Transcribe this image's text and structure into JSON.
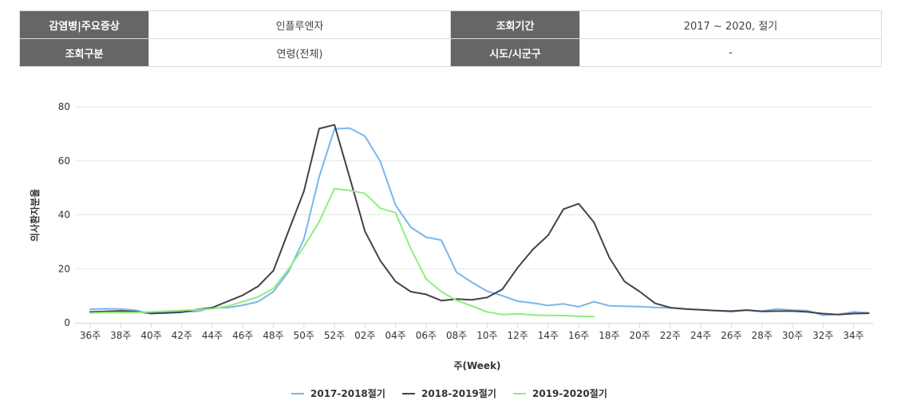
{
  "info": {
    "row1": {
      "label1": "감염병|주요증상",
      "value1": "인플루엔자",
      "label2": "조회기간",
      "value2": "2017 ~ 2020, 절기"
    },
    "row2": {
      "label1": "조회구분",
      "value1": "연령(전체)",
      "label2": "시도/시군구",
      "value2": "-"
    }
  },
  "colors": {
    "s2017": "#7cb5ec",
    "s2018": "#434348",
    "s2019": "#90ed7d",
    "grid": "#e6e6e6"
  },
  "chart_data": {
    "type": "line",
    "ylabel": "의사환자분율",
    "xlabel": "주(Week)",
    "ylim": [
      0,
      80
    ],
    "yticks": [
      0,
      20,
      40,
      60,
      80
    ],
    "grid": true,
    "legend_position": "bottom-center",
    "x": [
      "36주",
      "37주",
      "38주",
      "39주",
      "40주",
      "41주",
      "42주",
      "43주",
      "44주",
      "45주",
      "46주",
      "47주",
      "48주",
      "49주",
      "50주",
      "51주",
      "52주",
      "01주",
      "02주",
      "03주",
      "04주",
      "05주",
      "06주",
      "07주",
      "08주",
      "09주",
      "10주",
      "11주",
      "12주",
      "13주",
      "14주",
      "15주",
      "16주",
      "17주",
      "18주",
      "19주",
      "20주",
      "21주",
      "22주",
      "23주",
      "24주",
      "25주",
      "26주",
      "27주",
      "28주",
      "29주",
      "30주",
      "31주",
      "32주",
      "33주",
      "34주",
      "35주"
    ],
    "xticklabels": [
      "36주",
      "38주",
      "40주",
      "42주",
      "44주",
      "46주",
      "48주",
      "50주",
      "52주",
      "02주",
      "04주",
      "06주",
      "08주",
      "10주",
      "12주",
      "14주",
      "16주",
      "18주",
      "20주",
      "22주",
      "24주",
      "26주",
      "28주",
      "30주",
      "32주",
      "34주"
    ],
    "series": [
      {
        "name": "2017-2018절기",
        "color": "#7cb5ec",
        "values": [
          5.0,
          5.2,
          5.1,
          4.6,
          3.3,
          3.8,
          4.0,
          4.2,
          5.5,
          5.6,
          6.5,
          7.8,
          11.5,
          19.0,
          31.0,
          54.0,
          71.8,
          72.1,
          69.1,
          59.8,
          43.6,
          35.4,
          31.7,
          30.6,
          18.7,
          15.0,
          11.7,
          10.0,
          8.0,
          7.3,
          6.4,
          7.0,
          5.9,
          7.8,
          6.3,
          6.1,
          6.0,
          5.7,
          5.5,
          5.1,
          4.8,
          4.5,
          4.1,
          4.7,
          4.3,
          5.1,
          4.7,
          4.5,
          2.8,
          3.1,
          4.0,
          3.7
        ]
      },
      {
        "name": "2018-2019절기",
        "color": "#434348",
        "values": [
          4.0,
          4.2,
          4.4,
          4.1,
          3.5,
          3.6,
          3.9,
          4.9,
          5.6,
          7.9,
          10.2,
          13.5,
          19.3,
          34.1,
          48.7,
          71.9,
          73.3,
          53.8,
          33.9,
          23.0,
          15.3,
          11.5,
          10.5,
          8.2,
          8.8,
          8.5,
          9.4,
          12.4,
          20.4,
          27.2,
          32.4,
          42.1,
          44.1,
          37.2,
          24.2,
          15.3,
          11.5,
          7.2,
          5.6,
          5.1,
          4.8,
          4.5,
          4.3,
          4.7,
          4.2,
          4.3,
          4.3,
          4.0,
          3.4,
          3.0,
          3.4,
          3.5
        ]
      },
      {
        "name": "2019-2020절기",
        "color": "#90ed7d",
        "values": [
          3.6,
          3.8,
          3.8,
          3.8,
          4.0,
          4.3,
          4.6,
          4.8,
          5.2,
          6.2,
          7.8,
          9.6,
          12.7,
          19.9,
          28.2,
          37.4,
          49.7,
          49.0,
          47.9,
          42.4,
          40.8,
          27.4,
          16.2,
          11.5,
          8.3,
          6.2,
          4.0,
          3.0,
          3.3,
          2.9,
          2.7,
          2.7,
          2.4,
          2.3,
          null,
          null,
          null,
          null,
          null,
          null,
          null,
          null,
          null,
          null,
          null,
          null,
          null,
          null,
          null,
          null,
          null,
          null
        ]
      }
    ]
  }
}
